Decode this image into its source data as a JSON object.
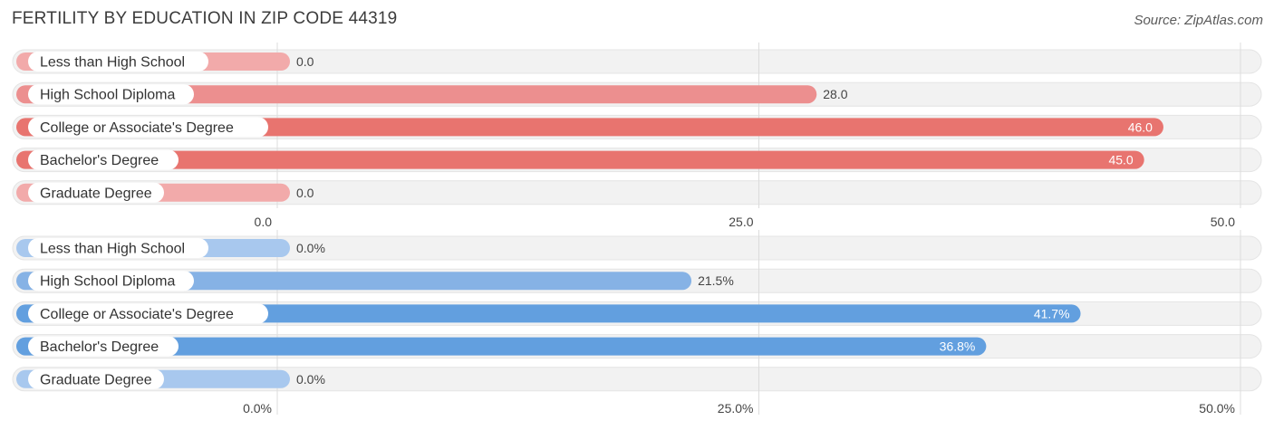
{
  "title": "FERTILITY BY EDUCATION IN ZIP CODE 44319",
  "source": "Source: ZipAtlas.com",
  "chart_data": [
    {
      "type": "bar",
      "orientation": "horizontal",
      "categories": [
        "Less than High School",
        "High School Diploma",
        "College or Associate's Degree",
        "Bachelor's Degree",
        "Graduate Degree"
      ],
      "values": [
        0.0,
        28.0,
        46.0,
        45.0,
        0.0
      ],
      "value_labels": [
        "0.0",
        "28.0",
        "46.0",
        "45.0",
        "0.0"
      ],
      "xlim": [
        0,
        50
      ],
      "ticks": [
        0,
        25,
        50
      ],
      "tick_labels": [
        "0.0",
        "25.0",
        "50.0"
      ],
      "colors": [
        "#f2aaaa",
        "#ec8f8f",
        "#e8746f",
        "#e8746f",
        "#f2aaaa"
      ],
      "grid": true
    },
    {
      "type": "bar",
      "orientation": "horizontal",
      "categories": [
        "Less than High School",
        "High School Diploma",
        "College or Associate's Degree",
        "Bachelor's Degree",
        "Graduate Degree"
      ],
      "values": [
        0.0,
        21.5,
        41.7,
        36.8,
        0.0
      ],
      "value_labels": [
        "0.0%",
        "21.5%",
        "41.7%",
        "36.8%",
        "0.0%"
      ],
      "xlim": [
        0,
        50
      ],
      "ticks": [
        0,
        25,
        50
      ],
      "tick_labels": [
        "0.0%",
        "25.0%",
        "50.0%"
      ],
      "colors": [
        "#a8c8ee",
        "#86b2e5",
        "#629fdf",
        "#629fdf",
        "#a8c8ee"
      ],
      "grid": true
    }
  ]
}
